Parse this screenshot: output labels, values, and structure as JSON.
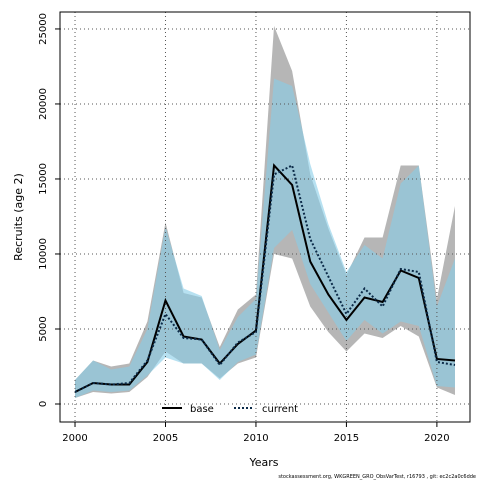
{
  "chart_data": {
    "type": "line-band",
    "x_label": "Years",
    "y_label": "Recruits (age 2)",
    "footer": "stockassessment.org, WKGREEN_GRO_ObsVarTest, r16793 , git: ec2c2a0c6dde",
    "x": [
      2000,
      2001,
      2002,
      2003,
      2004,
      2005,
      2006,
      2007,
      2008,
      2009,
      2010,
      2011,
      2012,
      2013,
      2014,
      2015,
      2016,
      2017,
      2018,
      2019,
      2020,
      2021
    ],
    "xlim": [
      1999.17,
      2021.83
    ],
    "xticks": [
      2000,
      2005,
      2010,
      2015,
      2020
    ],
    "ylim": [
      -1200,
      26130
    ],
    "yticks": [
      0,
      5000,
      10000,
      15000,
      20000,
      25000
    ],
    "grid": true,
    "legend": "bottom",
    "series": [
      {
        "name": "base",
        "color": "#000000",
        "linestyle": "solid",
        "band_color": "#a9a9a9",
        "values": [
          800,
          1400,
          1300,
          1300,
          2800,
          6900,
          4500,
          4300,
          2700,
          4000,
          4900,
          15900,
          14600,
          9500,
          7300,
          5600,
          7100,
          6800,
          8900,
          8400,
          3000,
          2900
        ],
        "upper": [
          1600,
          2900,
          2500,
          2700,
          5500,
          12100,
          7400,
          7100,
          3800,
          6300,
          7300,
          25200,
          22200,
          15300,
          11700,
          8600,
          11100,
          11100,
          15900,
          15900,
          7000,
          13200
        ],
        "lower": [
          400,
          800,
          700,
          800,
          1800,
          3500,
          2700,
          2700,
          1700,
          2700,
          3100,
          10000,
          9700,
          6500,
          4800,
          3500,
          4700,
          4400,
          5200,
          4500,
          1100,
          600
        ]
      },
      {
        "name": "current",
        "color": "#0b2a48",
        "linestyle": "dotted",
        "band_color": "#87cde8",
        "values": [
          800,
          1400,
          1300,
          1400,
          2900,
          6000,
          4400,
          4300,
          2600,
          4100,
          4800,
          15300,
          15900,
          11000,
          8500,
          6000,
          7700,
          6500,
          9000,
          8800,
          2800,
          2600
        ],
        "upper": [
          1600,
          2900,
          2300,
          2500,
          5000,
          11800,
          7700,
          7200,
          3600,
          5800,
          7000,
          21700,
          21200,
          16000,
          12000,
          8800,
          10600,
          9700,
          14700,
          15900,
          6500,
          9700
        ],
        "lower": [
          400,
          900,
          800,
          900,
          1900,
          3100,
          2700,
          2700,
          1600,
          2800,
          3300,
          10400,
          11600,
          8000,
          6100,
          4200,
          5600,
          4700,
          5500,
          5200,
          1200,
          1100
        ]
      }
    ]
  }
}
